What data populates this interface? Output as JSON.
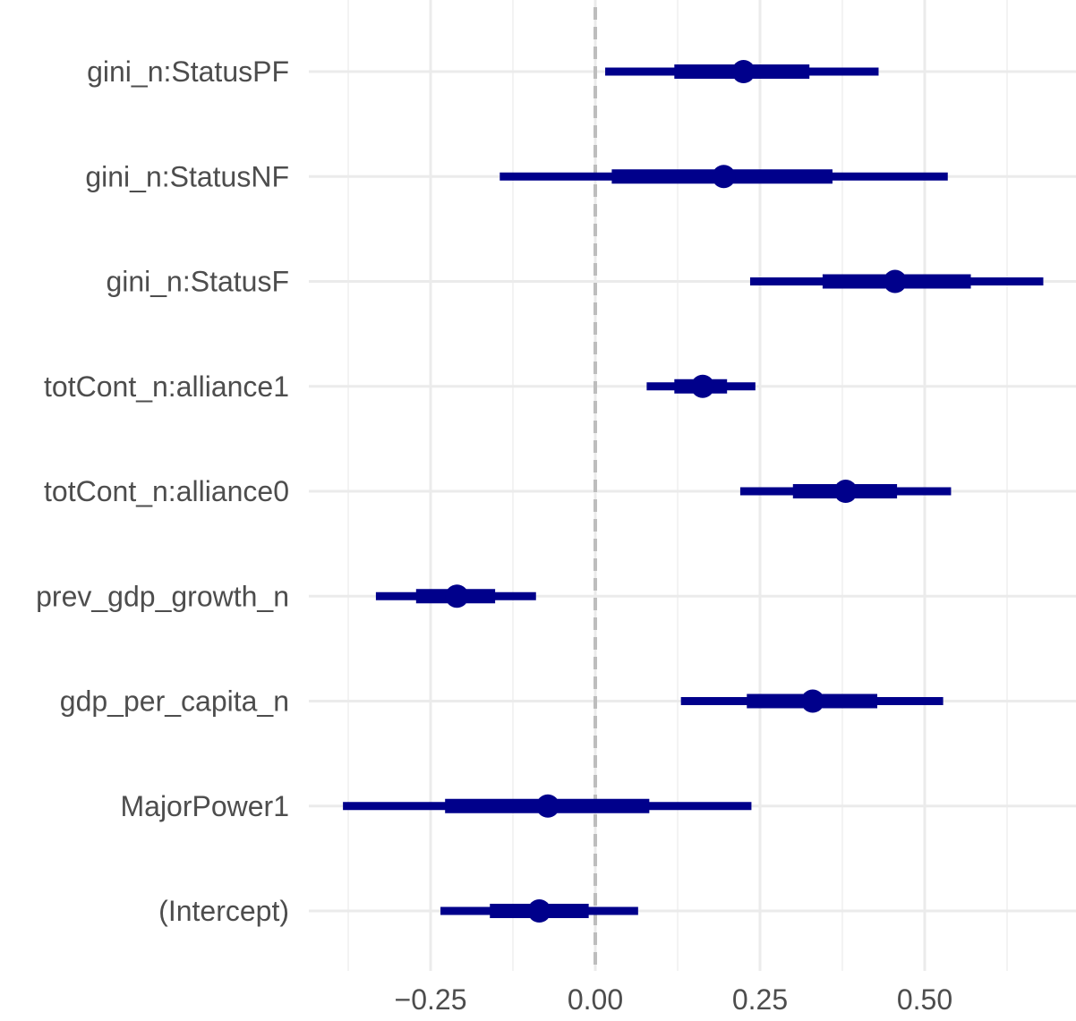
{
  "chart_data": {
    "type": "interval",
    "x_ticks": [
      {
        "value": -0.25,
        "label": "−0.25"
      },
      {
        "value": 0.0,
        "label": "0.00"
      },
      {
        "value": 0.25,
        "label": "0.25"
      },
      {
        "value": 0.5,
        "label": "0.50"
      }
    ],
    "xlim": [
      -0.43,
      0.72
    ],
    "reference_line": 0,
    "grid": true,
    "colors": {
      "mark": "#00008b",
      "grid_major": "#ebebeb",
      "grid_minor": "#f3f3f3",
      "reference": "#bdbdbd",
      "text": "#4d4d4d"
    },
    "rows": [
      {
        "label": "gini_n:StatusPF",
        "estimate": 0.225,
        "inner": [
          0.12,
          0.325
        ],
        "outer": [
          0.015,
          0.43
        ]
      },
      {
        "label": "gini_n:StatusNF",
        "estimate": 0.195,
        "inner": [
          0.025,
          0.36
        ],
        "outer": [
          -0.145,
          0.535
        ]
      },
      {
        "label": "gini_n:StatusF",
        "estimate": 0.455,
        "inner": [
          0.345,
          0.57
        ],
        "outer": [
          0.235,
          0.68
        ]
      },
      {
        "label": "totCont_n:alliance1",
        "estimate": 0.163,
        "inner": [
          0.12,
          0.2
        ],
        "outer": [
          0.078,
          0.243
        ]
      },
      {
        "label": "totCont_n:alliance0",
        "estimate": 0.38,
        "inner": [
          0.3,
          0.458
        ],
        "outer": [
          0.22,
          0.54
        ]
      },
      {
        "label": "prev_gdp_growth_n",
        "estimate": -0.21,
        "inner": [
          -0.272,
          -0.152
        ],
        "outer": [
          -0.333,
          -0.09
        ]
      },
      {
        "label": "gdp_per_capita_n",
        "estimate": 0.33,
        "inner": [
          0.23,
          0.428
        ],
        "outer": [
          0.13,
          0.528
        ]
      },
      {
        "label": "MajorPower1",
        "estimate": -0.072,
        "inner": [
          -0.228,
          0.082
        ],
        "outer": [
          -0.383,
          0.237
        ]
      },
      {
        "label": "(Intercept)",
        "estimate": -0.085,
        "inner": [
          -0.16,
          -0.01
        ],
        "outer": [
          -0.235,
          0.065
        ]
      }
    ]
  }
}
